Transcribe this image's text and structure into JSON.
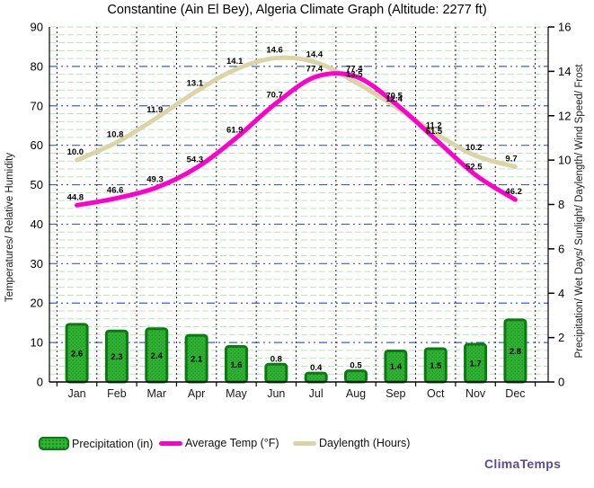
{
  "title": "Constantine (Ain El Bey), Algeria Climate Graph (Altitude: 2277 ft)",
  "brand": "ClimaTemps",
  "chart_data": {
    "type": "bar+line combo",
    "categories": [
      "Jan",
      "Feb",
      "Mar",
      "Apr",
      "May",
      "Jun",
      "Jul",
      "Aug",
      "Sep",
      "Oct",
      "Nov",
      "Dec"
    ],
    "series": [
      {
        "name": "Precipitation (in)",
        "type": "bar",
        "axis": "right",
        "color": "#31b434",
        "border_color": "#0b7a12",
        "values": [
          2.6,
          2.3,
          2.4,
          2.1,
          1.6,
          0.8,
          0.4,
          0.5,
          1.4,
          1.5,
          1.7,
          2.8
        ]
      },
      {
        "name": "Average Temp (°F)",
        "type": "line",
        "axis": "left",
        "color": "#ff00cc",
        "values": [
          44.8,
          46.6,
          49.3,
          54.3,
          61.9,
          70.7,
          77.4,
          77.4,
          70.5,
          61.5,
          52.5,
          46.2
        ]
      },
      {
        "name": "Daylength (Hours)",
        "type": "line",
        "axis": "right",
        "color": "#d9d5a7",
        "values": [
          10.0,
          10.8,
          11.9,
          13.1,
          14.1,
          14.6,
          14.4,
          13.5,
          12.4,
          11.2,
          10.2,
          9.7
        ]
      }
    ],
    "left_axis": {
      "label": "Temperatures/ Relative Humidity",
      "min": 0,
      "max": 90,
      "step": 10
    },
    "right_axis": {
      "label": "Precipitation/ Wet Days/ Sunlight/ Daylength/ Wind Speed/ Frost",
      "min": 0,
      "max": 16,
      "step": 2
    },
    "grid": {
      "major_color": "#3a5fd0",
      "minor_color": "#b9e6b9",
      "month_divider_color": "#222222",
      "minor_step_left_units": 2
    },
    "legend_position": "bottom"
  }
}
